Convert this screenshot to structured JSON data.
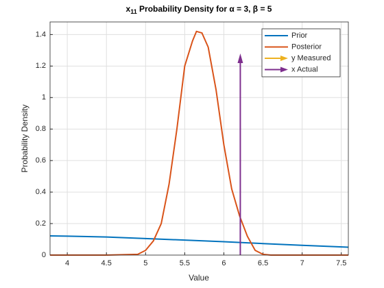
{
  "chart_data": {
    "type": "line",
    "title": {
      "base": "x",
      "subscript": "11",
      "rest": " Probability Density for α = 3, β = 5"
    },
    "xlabel": "Value",
    "ylabel": "Probability Density",
    "xlim": [
      3.78,
      7.59
    ],
    "ylim": [
      0,
      1.48
    ],
    "xticks": [
      4,
      4.5,
      5,
      5.5,
      6,
      6.5,
      7,
      7.5
    ],
    "yticks": [
      0,
      0.2,
      0.4,
      0.6,
      0.8,
      1,
      1.2,
      1.4
    ],
    "grid": true,
    "legend": "top-right",
    "series": [
      {
        "name": "Prior",
        "color": "#0072BD",
        "x": [
          3.78,
          4.0,
          4.5,
          5.0,
          5.5,
          6.0,
          6.5,
          7.0,
          7.59
        ],
        "values": [
          0.122,
          0.12,
          0.115,
          0.105,
          0.095,
          0.085,
          0.073,
          0.062,
          0.05
        ]
      },
      {
        "name": "Posterior",
        "color": "#D95319",
        "x": [
          3.78,
          4.5,
          4.9,
          5.0,
          5.1,
          5.2,
          5.3,
          5.4,
          5.5,
          5.6,
          5.65,
          5.72,
          5.8,
          5.9,
          6.0,
          6.1,
          6.2,
          6.3,
          6.4,
          6.5,
          6.6,
          7.59
        ],
        "values": [
          0,
          0,
          0.005,
          0.03,
          0.09,
          0.2,
          0.45,
          0.8,
          1.2,
          1.36,
          1.42,
          1.41,
          1.32,
          1.05,
          0.7,
          0.42,
          0.25,
          0.12,
          0.03,
          0.005,
          0,
          0
        ]
      },
      {
        "name": "y Measured",
        "color": "#EDB120",
        "kind": "arrow"
      },
      {
        "name": "x Actual",
        "color": "#7E2F8E",
        "kind": "arrow",
        "x": [
          6.21
        ],
        "values": [
          1.28
        ]
      }
    ]
  }
}
